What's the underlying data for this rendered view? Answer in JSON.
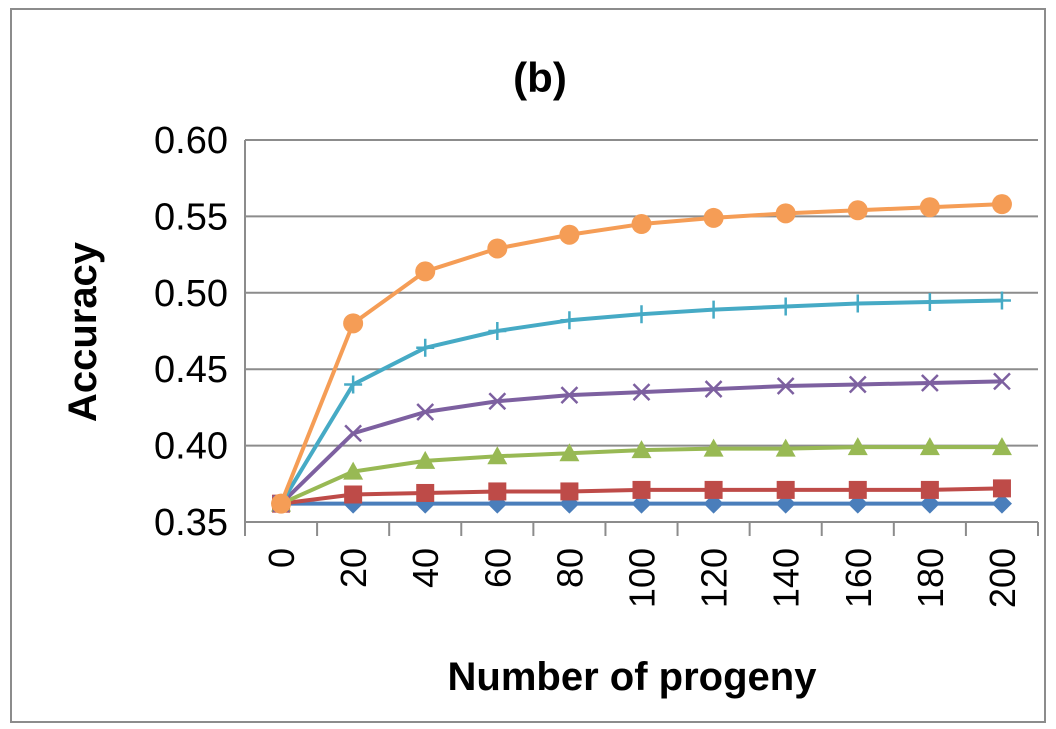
{
  "chart_data": {
    "type": "line",
    "title": "(b)",
    "xlabel": "Number of progeny",
    "ylabel": "Accuracy",
    "x": [
      0,
      20,
      40,
      60,
      80,
      100,
      120,
      140,
      160,
      180,
      200
    ],
    "x_tick_labels": [
      "0",
      "20",
      "40",
      "60",
      "80",
      "100",
      "120",
      "140",
      "160",
      "180",
      "200"
    ],
    "y_tick_labels": [
      "0.35",
      "0.40",
      "0.45",
      "0.50",
      "0.55",
      "0.60"
    ],
    "y_ticks": [
      0.35,
      0.4,
      0.45,
      0.5,
      0.55,
      0.6
    ],
    "ylim": [
      0.35,
      0.6
    ],
    "grid": "horizontal",
    "series": [
      {
        "marker": "diamond",
        "color": "#4a7ebb",
        "values": [
          0.362,
          0.362,
          0.362,
          0.362,
          0.362,
          0.362,
          0.362,
          0.362,
          0.362,
          0.362,
          0.362
        ]
      },
      {
        "marker": "square",
        "color": "#be4b48",
        "values": [
          0.362,
          0.368,
          0.369,
          0.37,
          0.37,
          0.371,
          0.371,
          0.371,
          0.371,
          0.371,
          0.372
        ]
      },
      {
        "marker": "triangle",
        "color": "#98b954",
        "values": [
          0.362,
          0.383,
          0.39,
          0.393,
          0.395,
          0.397,
          0.398,
          0.398,
          0.399,
          0.399,
          0.399
        ]
      },
      {
        "marker": "x",
        "color": "#7d60a0",
        "values": [
          0.362,
          0.408,
          0.422,
          0.429,
          0.433,
          0.435,
          0.437,
          0.439,
          0.44,
          0.441,
          0.442
        ]
      },
      {
        "marker": "plus",
        "color": "#46aac5",
        "values": [
          0.362,
          0.44,
          0.464,
          0.475,
          0.482,
          0.486,
          0.489,
          0.491,
          0.493,
          0.494,
          0.495
        ]
      },
      {
        "marker": "circle",
        "color": "#f59d56",
        "values": [
          0.362,
          0.48,
          0.514,
          0.529,
          0.538,
          0.545,
          0.549,
          0.552,
          0.554,
          0.556,
          0.558
        ]
      }
    ]
  }
}
